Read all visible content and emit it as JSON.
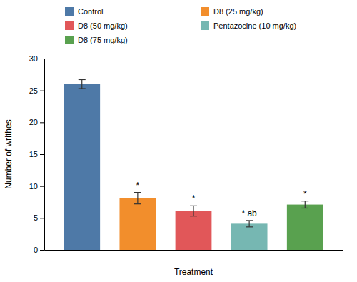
{
  "chart_data": {
    "type": "bar",
    "categories": [
      "Control",
      "D8 (25 mg/kg)",
      "D8 (50 mg/kg)",
      "Pentazocine (10 mg/kg)",
      "D8 (75 mg/kg)"
    ],
    "values": [
      26.0,
      8.1,
      6.1,
      4.1,
      7.1
    ],
    "errors": [
      0.7,
      0.9,
      0.8,
      0.5,
      0.55
    ],
    "xlabel": "Treatment",
    "ylabel": "Number of writhes",
    "ylim": [
      0,
      30
    ],
    "yticks": [
      0,
      5,
      10,
      15,
      20,
      25,
      30
    ],
    "annotations": [
      {
        "category": "D8 (25 mg/kg)",
        "text": "*"
      },
      {
        "category": "D8 (50 mg/kg)",
        "text": "*"
      },
      {
        "category": "Pentazocine (10 mg/kg)",
        "text": "* ab"
      },
      {
        "category": "D8 (75 mg/kg)",
        "text": "*"
      }
    ],
    "tick_labels": "y",
    "legend": "top",
    "grid": false
  }
}
